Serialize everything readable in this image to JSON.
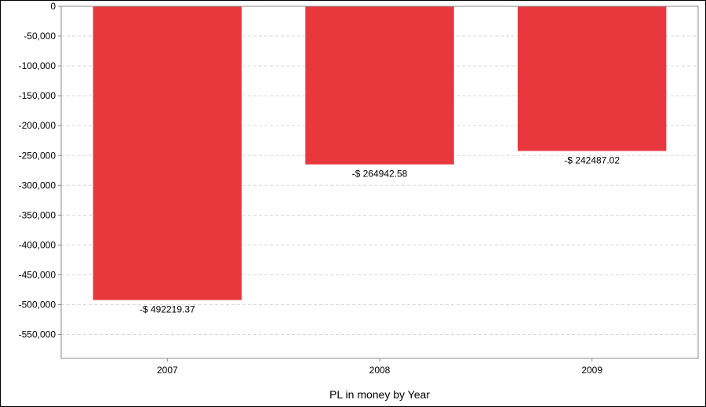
{
  "chart_data": {
    "type": "bar",
    "categories": [
      "2007",
      "2008",
      "2009"
    ],
    "values": [
      -492219.37,
      -264942.58,
      -242487.02
    ],
    "data_labels": [
      "-$ 492219.37",
      "-$ 264942.58",
      "-$ 242487.02"
    ],
    "title": "",
    "xlabel": "PL in money by Year",
    "ylabel": "",
    "ylim": [
      -590000,
      0
    ],
    "yticks": [
      0,
      -50000,
      -100000,
      -150000,
      -200000,
      -250000,
      -300000,
      -350000,
      -400000,
      -450000,
      -500000,
      -550000
    ],
    "ytick_labels": [
      "0",
      "-50,000",
      "-100,000",
      "-150,000",
      "-200,000",
      "-250,000",
      "-300,000",
      "-350,000",
      "-400,000",
      "-450,000",
      "-500,000",
      "-550,000"
    ],
    "grid": true,
    "legend": "none",
    "bar_color": "#e8383d"
  }
}
